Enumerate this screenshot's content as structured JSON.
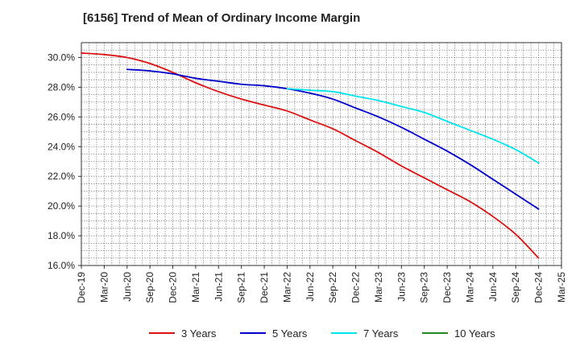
{
  "chart_data": {
    "type": "line",
    "title": "[6156]  Trend of Mean of Ordinary Income Margin",
    "xlabel": "",
    "ylabel": "",
    "ylim": [
      16,
      31
    ],
    "y_tick_values": [
      16,
      18,
      20,
      22,
      24,
      26,
      28,
      30
    ],
    "y_tick_labels": [
      "16.0%",
      "18.0%",
      "20.0%",
      "22.0%",
      "24.0%",
      "26.0%",
      "28.0%",
      "30.0%"
    ],
    "x_tick_labels": [
      "Dec-19",
      "Mar-20",
      "Jun-20",
      "Sep-20",
      "Dec-20",
      "Mar-21",
      "Jun-21",
      "Sep-21",
      "Dec-21",
      "Mar-22",
      "Jun-22",
      "Sep-22",
      "Dec-22",
      "Mar-23",
      "Jun-23",
      "Sep-23",
      "Dec-23",
      "Mar-24",
      "Jun-24",
      "Sep-24",
      "Dec-24",
      "Mar-25"
    ],
    "grid": true,
    "legend_position": "bottom",
    "series": [
      {
        "name": "3 Years",
        "color": "#dd1111",
        "x": [
          "Dec-19",
          "Mar-20",
          "Jun-20",
          "Sep-20",
          "Dec-20",
          "Mar-21",
          "Jun-21",
          "Sep-21",
          "Dec-21",
          "Mar-22",
          "Jun-22",
          "Sep-22",
          "Dec-22",
          "Mar-23",
          "Jun-23",
          "Sep-23",
          "Dec-23",
          "Mar-24",
          "Jun-24",
          "Sep-24",
          "Dec-24"
        ],
        "values": [
          30.3,
          30.2,
          30.0,
          29.6,
          29.0,
          28.3,
          27.7,
          27.2,
          26.8,
          26.4,
          25.8,
          25.2,
          24.4,
          23.6,
          22.7,
          21.9,
          21.1,
          20.3,
          19.3,
          18.1,
          16.5
        ]
      },
      {
        "name": "5 Years",
        "color": "#0000cc",
        "x": [
          "Jun-20",
          "Sep-20",
          "Dec-20",
          "Mar-21",
          "Jun-21",
          "Sep-21",
          "Dec-21",
          "Mar-22",
          "Jun-22",
          "Sep-22",
          "Dec-22",
          "Mar-23",
          "Jun-23",
          "Sep-23",
          "Dec-23",
          "Mar-24",
          "Jun-24",
          "Sep-24",
          "Dec-24"
        ],
        "values": [
          29.2,
          29.1,
          28.9,
          28.6,
          28.4,
          28.2,
          28.1,
          27.9,
          27.6,
          27.2,
          26.6,
          26.0,
          25.3,
          24.5,
          23.7,
          22.8,
          21.8,
          20.8,
          19.8
        ]
      },
      {
        "name": "7 Years",
        "color": "#00e5ee",
        "x": [
          "Mar-22",
          "Jun-22",
          "Sep-22",
          "Dec-22",
          "Mar-23",
          "Jun-23",
          "Sep-23",
          "Dec-23",
          "Mar-24",
          "Jun-24",
          "Sep-24",
          "Dec-24"
        ],
        "values": [
          27.9,
          27.8,
          27.7,
          27.4,
          27.1,
          26.7,
          26.3,
          25.7,
          25.1,
          24.5,
          23.8,
          22.9
        ]
      },
      {
        "name": "10 Years",
        "color": "#228822",
        "x": [],
        "values": []
      }
    ]
  }
}
